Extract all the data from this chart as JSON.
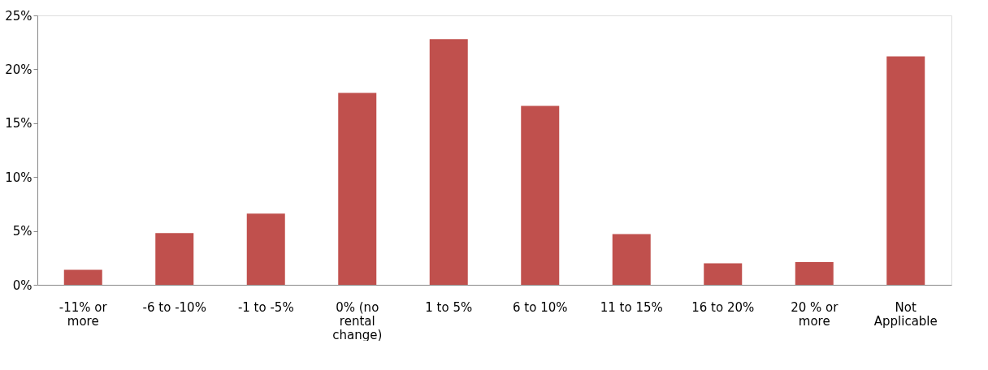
{
  "chart_data": {
    "type": "bar",
    "categories": [
      "-11% or more",
      "-6 to -10%",
      "-1 to -5%",
      "0% (no rental change)",
      "1 to 5%",
      "6 to 10%",
      "11 to 15%",
      "16 to 20%",
      "20 % or more",
      "Not Applicable"
    ],
    "values": [
      1.4,
      4.8,
      6.6,
      17.8,
      22.8,
      16.6,
      4.7,
      2.0,
      2.1,
      21.2
    ],
    "color": "#c0504d",
    "ylim": [
      0,
      25
    ],
    "yticks": [
      {
        "value": 0,
        "label": "0%"
      },
      {
        "value": 5,
        "label": "5%"
      },
      {
        "value": 10,
        "label": "10%"
      },
      {
        "value": 15,
        "label": "15%"
      },
      {
        "value": 20,
        "label": "20%"
      },
      {
        "value": 25,
        "label": "25%"
      }
    ],
    "grid": false
  }
}
